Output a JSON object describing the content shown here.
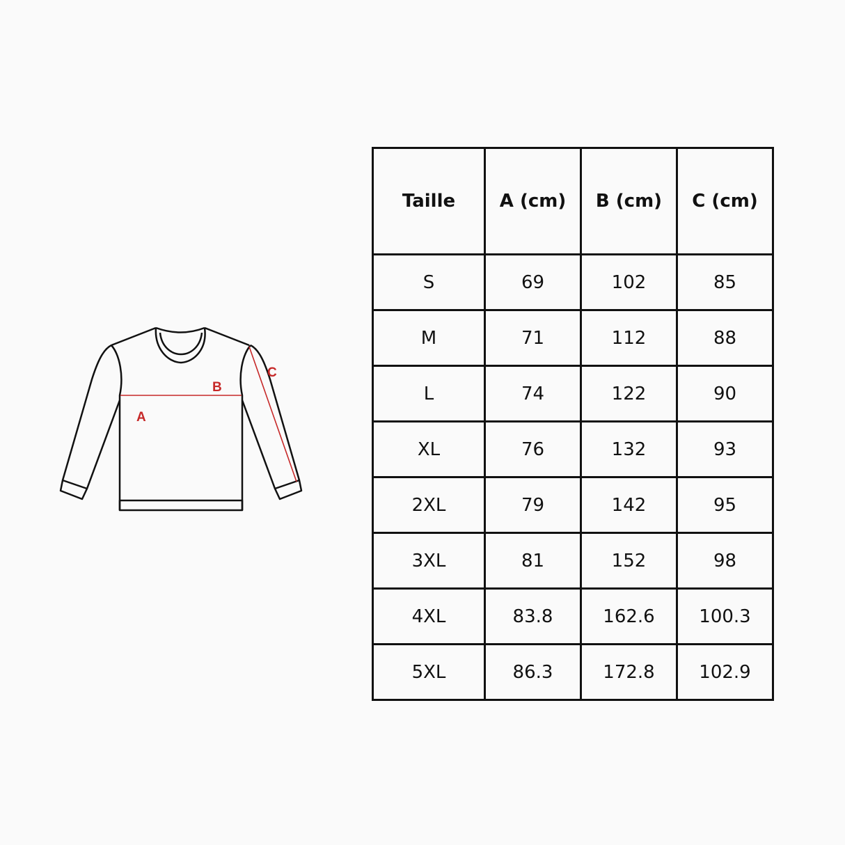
{
  "diagram": {
    "labels": {
      "a": "A",
      "b": "B",
      "c": "C"
    },
    "colors": {
      "measure": "#c62828",
      "outline": "#111111"
    }
  },
  "table": {
    "headers": [
      "Taille",
      "A (cm)",
      "B (cm)",
      "C (cm)"
    ],
    "rows": [
      [
        "S",
        "69",
        "102",
        "85"
      ],
      [
        "M",
        "71",
        "112",
        "88"
      ],
      [
        "L",
        "74",
        "122",
        "90"
      ],
      [
        "XL",
        "76",
        "132",
        "93"
      ],
      [
        "2XL",
        "79",
        "142",
        "95"
      ],
      [
        "3XL",
        "81",
        "152",
        "98"
      ],
      [
        "4XL",
        "83.8",
        "162.6",
        "100.3"
      ],
      [
        "5XL",
        "86.3",
        "172.8",
        "102.9"
      ]
    ]
  }
}
